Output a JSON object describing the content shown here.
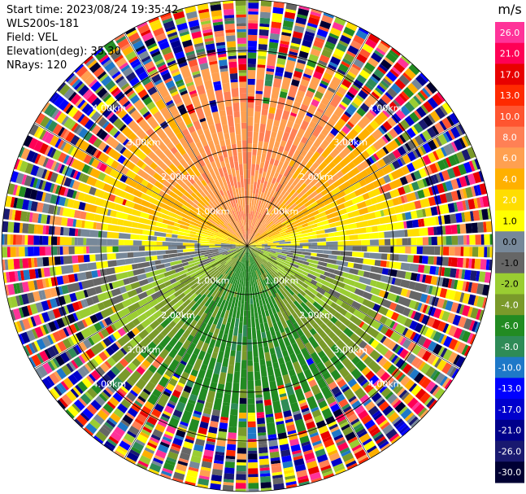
{
  "header": {
    "start_time": "Start time: 2023/08/24 19:35:42",
    "instrument": "WLS200s-181",
    "field": "Field: VEL",
    "elevation": "Elevation(deg): 35.30",
    "nrays": "NRays: 120"
  },
  "chart_data": {
    "type": "heatmap",
    "subtype": "polar-ppi",
    "field": "VEL",
    "units": "m/s",
    "n_rays": 120,
    "range_rings_km": [
      1.0,
      2.0,
      3.0,
      4.0
    ],
    "range_ring_labels": [
      "1.00km",
      "2.00km",
      "3.00km",
      "4.00km"
    ],
    "colorbar": {
      "title": "m/s",
      "ticks": [
        "26.0",
        "21.0",
        "17.0",
        "13.0",
        "10.0",
        "8.0",
        "6.0",
        "4.0",
        "2.0",
        "1.0",
        "0.0",
        "-1.0",
        "-2.0",
        "-4.0",
        "-6.0",
        "-8.0",
        "-10.0",
        "-13.0",
        "-17.0",
        "-21.0",
        "-26.0",
        "-30.0"
      ],
      "colors": [
        "#ff3399",
        "#ff0055",
        "#e80000",
        "#ff2a00",
        "#ff5530",
        "#ff8055",
        "#ffa050",
        "#ffb000",
        "#ffdd00",
        "#ffff00",
        "#778899",
        "#666666",
        "#9acd32",
        "#7a9a2a",
        "#228b22",
        "#2e8b57",
        "#1e78c8",
        "#0000ff",
        "#0000cd",
        "#00008b",
        "#191970",
        "#000033"
      ]
    },
    "velocity_pattern": {
      "north_inner": "positive, about 6 m/s (orange)",
      "east_west_band": "near zero to +2 m/s (grey / yellow)",
      "south_inner": "negative, about -4 to -8 m/s (green)",
      "outer_ranges": "noise, all velocity bins"
    }
  }
}
